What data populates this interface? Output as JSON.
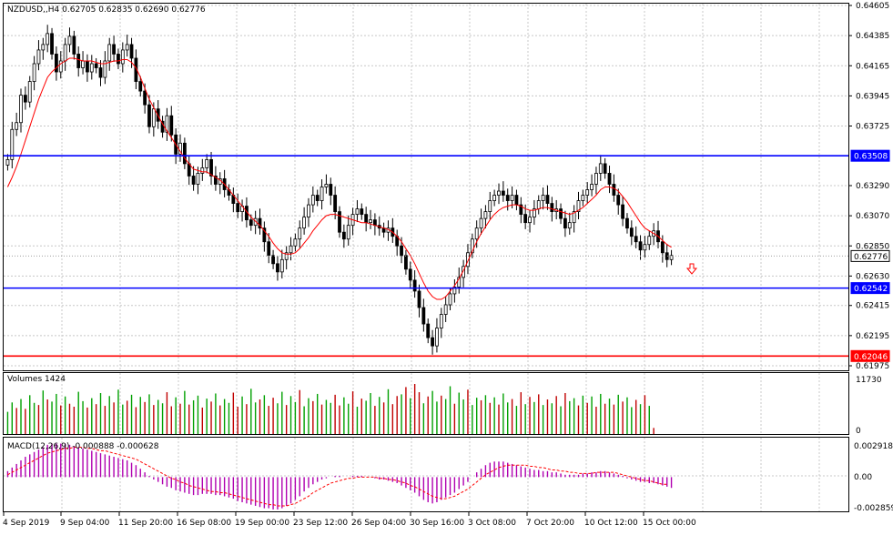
{
  "header": {
    "symbol_line": "NZDUSD,,H4  0.62705 0.62835 0.62690 0.62776"
  },
  "colors": {
    "background": "#ffffff",
    "grid": "#c8c8c8",
    "candle": "#000000",
    "ma_line": "#ff0000",
    "support_resistance": "#0000ff",
    "low_line": "#ff0000",
    "volume_up": "#00a000",
    "volume_down": "#c00000",
    "macd_hist": "#b000b0",
    "macd_signal": "#ff0000",
    "sell_arrow": "#ff0000"
  },
  "price_axis": {
    "ticks": [
      "0.64605",
      "0.64385",
      "0.64165",
      "0.63945",
      "0.63725",
      "0.63290",
      "0.63070",
      "0.62850",
      "0.62630",
      "0.62415",
      "0.62195",
      "0.61975"
    ]
  },
  "price_tags": {
    "resistance": "0.63508",
    "current": "0.62776",
    "support": "0.62542",
    "low": "0.62046"
  },
  "volume_panel": {
    "label": "Volumes 1424",
    "max_label": "11730",
    "min_label": "0"
  },
  "macd_panel": {
    "label": "MACD(12,26,9) -0.000888 -0.000628",
    "top_label": "0.002918",
    "zero_label": "0.00",
    "bottom_label": "-0.002859"
  },
  "time_axis": {
    "labels": [
      "4 Sep 2019",
      "9 Sep 04:00",
      "11 Sep 20:00",
      "16 Sep 08:00",
      "19 Sep 00:00",
      "23 Sep 12:00",
      "26 Sep 04:00",
      "30 Sep 16:00",
      "3 Oct 08:00",
      "7 Oct 20:00",
      "10 Oct 12:00",
      "15 Oct 00:00"
    ]
  },
  "chart_data": {
    "type": "candlestick",
    "symbol": "NZDUSD",
    "timeframe": "H4",
    "ylim": [
      0.61975,
      0.64605
    ],
    "horizontal_lines": [
      {
        "price": 0.63508,
        "color": "#0000ff"
      },
      {
        "price": 0.62542,
        "color": "#0000ff"
      },
      {
        "price": 0.62046,
        "color": "#ff0000"
      }
    ],
    "last_ohlc": {
      "open": 0.62705,
      "high": 0.62835,
      "low": 0.6269,
      "close": 0.62776
    },
    "close_series": [
      0.6348,
      0.637,
      0.6375,
      0.6395,
      0.639,
      0.6405,
      0.6418,
      0.6428,
      0.6432,
      0.644,
      0.6425,
      0.6412,
      0.642,
      0.6432,
      0.6438,
      0.6425,
      0.6415,
      0.642,
      0.6412,
      0.6418,
      0.6415,
      0.6408,
      0.642,
      0.6432,
      0.6425,
      0.6418,
      0.6428,
      0.6432,
      0.6422,
      0.6405,
      0.6398,
      0.6388,
      0.6372,
      0.6385,
      0.6376,
      0.6368,
      0.638,
      0.6366,
      0.6352,
      0.636,
      0.6345,
      0.6336,
      0.633,
      0.6338,
      0.6342,
      0.6348,
      0.6336,
      0.633,
      0.6334,
      0.6326,
      0.6322,
      0.6316,
      0.631,
      0.6314,
      0.6304,
      0.63,
      0.6305,
      0.6298,
      0.6288,
      0.6278,
      0.6272,
      0.6266,
      0.6275,
      0.628,
      0.6285,
      0.629,
      0.6298,
      0.6306,
      0.6315,
      0.6322,
      0.6318,
      0.6328,
      0.633,
      0.6322,
      0.631,
      0.6295,
      0.629,
      0.63,
      0.6308,
      0.6312,
      0.6308,
      0.6302,
      0.6304,
      0.63,
      0.6298,
      0.6295,
      0.6298,
      0.6292,
      0.6285,
      0.6278,
      0.6268,
      0.626,
      0.6252,
      0.624,
      0.6228,
      0.6218,
      0.6212,
      0.6225,
      0.6235,
      0.6242,
      0.625,
      0.6255,
      0.6262,
      0.627,
      0.628,
      0.629,
      0.6298,
      0.6305,
      0.631,
      0.6318,
      0.6322,
      0.6325,
      0.6322,
      0.6318,
      0.6322,
      0.6315,
      0.6308,
      0.6302,
      0.6306,
      0.6312,
      0.6318,
      0.6322,
      0.6316,
      0.631,
      0.6312,
      0.6305,
      0.6298,
      0.6302,
      0.631,
      0.6318,
      0.6322,
      0.6326,
      0.633,
      0.6338,
      0.6345,
      0.6338,
      0.633,
      0.6322,
      0.6315,
      0.6305,
      0.6298,
      0.6292,
      0.6288,
      0.6282,
      0.6286,
      0.6292,
      0.6296,
      0.6288,
      0.628,
      0.6275,
      0.6278
    ],
    "ma_series": [
      0.6328,
      0.6335,
      0.6343,
      0.6352,
      0.6362,
      0.6372,
      0.6382,
      0.6392,
      0.64,
      0.6408,
      0.6412,
      0.6415,
      0.6418,
      0.642,
      0.6422,
      0.6422,
      0.6421,
      0.642,
      0.642,
      0.642,
      0.6419,
      0.6418,
      0.6418,
      0.6419,
      0.642,
      0.642,
      0.6421,
      0.6421,
      0.6419,
      0.6415,
      0.6408,
      0.64,
      0.6392,
      0.6386,
      0.638,
      0.6374,
      0.6369,
      0.6364,
      0.6359,
      0.6354,
      0.6349,
      0.6345,
      0.6341,
      0.634,
      0.6339,
      0.6339,
      0.6337,
      0.6335,
      0.6333,
      0.633,
      0.6326,
      0.6322,
      0.6318,
      0.6314,
      0.631,
      0.6306,
      0.6303,
      0.63,
      0.6296,
      0.6292,
      0.6287,
      0.6283,
      0.628,
      0.6279,
      0.6279,
      0.628,
      0.6283,
      0.6287,
      0.6291,
      0.6296,
      0.63,
      0.6304,
      0.6307,
      0.6308,
      0.6308,
      0.6307,
      0.6306,
      0.6305,
      0.6304,
      0.6303,
      0.6302,
      0.6302,
      0.6301,
      0.63,
      0.6299,
      0.6298,
      0.6297,
      0.6295,
      0.6292,
      0.6288,
      0.6283,
      0.6278,
      0.6272,
      0.6265,
      0.6258,
      0.6252,
      0.6248,
      0.6246,
      0.6246,
      0.6248,
      0.6252,
      0.6256,
      0.6261,
      0.6267,
      0.6274,
      0.6281,
      0.6288,
      0.6294,
      0.6299,
      0.6304,
      0.6308,
      0.6311,
      0.6313,
      0.6314,
      0.6315,
      0.6315,
      0.6314,
      0.6312,
      0.6311,
      0.6311,
      0.6312,
      0.6313,
      0.6313,
      0.6312,
      0.6311,
      0.631,
      0.6309,
      0.6308,
      0.6309,
      0.6311,
      0.6313,
      0.6316,
      0.6319,
      0.6322,
      0.6326,
      0.6328,
      0.6328,
      0.6327,
      0.6325,
      0.6321,
      0.6317,
      0.6312,
      0.6307,
      0.6302,
      0.6298,
      0.6296,
      0.6294,
      0.6292,
      0.6289,
      0.6286,
      0.6284
    ],
    "volume": [
      5200,
      7400,
      6100,
      8200,
      5900,
      9100,
      7300,
      6800,
      10200,
      8100,
      7600,
      9400,
      6700,
      8800,
      7100,
      6400,
      9900,
      7700,
      6200,
      8400,
      7000,
      9600,
      6600,
      8900,
      7400,
      10400,
      6900,
      7800,
      9200,
      6300,
      8700,
      7500,
      9300,
      6800,
      8000,
      7200,
      9800,
      6500,
      8600,
      7100,
      10100,
      6900,
      7900,
      9000,
      6200,
      8300,
      7600,
      9500,
      6700,
      8200,
      7300,
      9700,
      6400,
      8800,
      7000,
      10600,
      7400,
      8100,
      9100,
      6600,
      8500,
      7200,
      9900,
      6800,
      8900,
      7500,
      10300,
      6500,
      8400,
      7700,
      9400,
      6900,
      8000,
      7300,
      9200,
      6700,
      8600,
      7100,
      10000,
      6400,
      8300,
      7800,
      9600,
      6600,
      8700,
      7400,
      10500,
      7000,
      8900,
      9300,
      11000,
      8400,
      11730,
      9800,
      7200,
      8800,
      10100,
      7600,
      9000,
      8200,
      11200,
      7100,
      9700,
      8100,
      10400,
      6800,
      8500,
      7900,
      9100,
      7300,
      8600,
      6900,
      9500,
      7400,
      8200,
      6600,
      9800,
      7000,
      8700,
      7500,
      9300,
      6800,
      8100,
      7200,
      8900,
      6500,
      9600,
      7700,
      8400,
      6700,
      9000,
      7300,
      8800,
      6400,
      9400,
      7100,
      8300,
      6900,
      9200,
      7600,
      8600,
      6300,
      8000,
      7000,
      9100,
      6600,
      1424
    ],
    "volume_up": [
      true,
      true,
      false,
      true,
      false,
      true,
      true,
      false,
      true,
      false,
      true,
      true,
      false,
      true,
      false,
      false,
      true,
      true,
      false,
      true,
      false,
      true,
      false,
      true,
      false,
      true,
      true,
      false,
      true,
      false,
      true,
      false,
      true,
      false,
      true,
      true,
      false,
      false,
      true,
      false,
      true,
      false,
      true,
      true,
      false,
      true,
      false,
      true,
      false,
      true,
      true,
      false,
      false,
      true,
      false,
      true,
      true,
      false,
      true,
      false,
      false,
      true,
      true,
      false,
      true,
      true,
      false,
      true,
      true,
      false,
      true,
      false,
      true,
      true,
      false,
      false,
      true,
      true,
      false,
      true,
      false,
      true,
      true,
      false,
      true,
      false,
      true,
      false,
      false,
      true,
      false,
      true,
      false,
      false,
      true,
      false,
      true,
      true,
      false,
      true,
      true,
      false,
      true,
      true,
      false,
      true,
      true,
      false,
      true,
      false,
      true,
      false,
      true,
      true,
      false,
      true,
      false,
      true,
      false,
      true,
      false,
      true,
      false,
      true,
      false,
      true,
      false,
      true,
      true,
      false,
      true,
      false,
      true,
      false,
      true,
      false,
      true,
      false,
      true,
      false,
      true,
      true,
      false,
      true,
      false,
      true,
      false,
      true,
      false,
      true
    ],
    "macd_hist": [
      0.0005,
      0.0008,
      0.0011,
      0.0014,
      0.0017,
      0.0019,
      0.0021,
      0.0023,
      0.0025,
      0.0027,
      0.0028,
      0.0028,
      0.0028,
      0.0028,
      0.0027,
      0.0026,
      0.0025,
      0.0024,
      0.0023,
      0.0022,
      0.0021,
      0.002,
      0.0019,
      0.0018,
      0.0017,
      0.0016,
      0.0015,
      0.0014,
      0.0012,
      0.001,
      0.0007,
      0.0004,
      0.0001,
      -0.0002,
      -0.0004,
      -0.0006,
      -0.0008,
      -0.0009,
      -0.0011,
      -0.0012,
      -0.0013,
      -0.0014,
      -0.0015,
      -0.0015,
      -0.0014,
      -0.0014,
      -0.0014,
      -0.0015,
      -0.0015,
      -0.0016,
      -0.0017,
      -0.0018,
      -0.002,
      -0.0021,
      -0.0022,
      -0.0023,
      -0.0024,
      -0.0025,
      -0.0026,
      -0.0026,
      -0.0027,
      -0.0027,
      -0.0026,
      -0.0024,
      -0.0022,
      -0.0019,
      -0.0016,
      -0.0012,
      -0.0009,
      -0.0006,
      -0.0004,
      -0.0002,
      -0.0001,
      0.0,
      0.0001,
      0.0001,
      0.0,
      0.0,
      0.0001,
      0.0001,
      0.0001,
      0.0,
      0.0,
      -0.0001,
      -0.0002,
      -0.0002,
      -0.0003,
      -0.0004,
      -0.0005,
      -0.0007,
      -0.0009,
      -0.0011,
      -0.0013,
      -0.0016,
      -0.0019,
      -0.0021,
      -0.0022,
      -0.0021,
      -0.0019,
      -0.0017,
      -0.0015,
      -0.0013,
      -0.001,
      -0.0007,
      -0.0004,
      0.0,
      0.0004,
      0.0007,
      0.001,
      0.0012,
      0.0013,
      0.0013,
      0.0013,
      0.0012,
      0.0011,
      0.001,
      0.0009,
      0.0008,
      0.0007,
      0.0006,
      0.0006,
      0.0005,
      0.0005,
      0.0004,
      0.0004,
      0.0003,
      0.0002,
      0.0002,
      0.0002,
      0.0002,
      0.0003,
      0.0003,
      0.0004,
      0.0004,
      0.0005,
      0.0005,
      0.0004,
      0.0003,
      0.0002,
      0.0001,
      -0.0001,
      -0.0002,
      -0.0003,
      -0.0004,
      -0.0004,
      -0.0005,
      -0.0005,
      -0.0006,
      -0.0007,
      -0.0008,
      -0.0009
    ],
    "macd_signal": [
      0.0002,
      0.0004,
      0.0006,
      0.0008,
      0.001,
      0.0012,
      0.0014,
      0.0016,
      0.0018,
      0.002,
      0.0021,
      0.0022,
      0.0023,
      0.0024,
      0.0024,
      0.0025,
      0.0025,
      0.0025,
      0.0024,
      0.0024,
      0.0023,
      0.0022,
      0.0022,
      0.0021,
      0.002,
      0.0019,
      0.0018,
      0.0017,
      0.0016,
      0.0015,
      0.0013,
      0.0011,
      0.0009,
      0.0007,
      0.0005,
      0.0003,
      0.0001,
      -0.0001,
      -0.0002,
      -0.0004,
      -0.0005,
      -0.0007,
      -0.0008,
      -0.0009,
      -0.001,
      -0.0011,
      -0.0012,
      -0.0012,
      -0.0013,
      -0.0013,
      -0.0014,
      -0.0015,
      -0.0016,
      -0.0017,
      -0.0018,
      -0.0019,
      -0.002,
      -0.0021,
      -0.0022,
      -0.0023,
      -0.0023,
      -0.0024,
      -0.0024,
      -0.0024,
      -0.0023,
      -0.0022,
      -0.002,
      -0.0018,
      -0.0016,
      -0.0013,
      -0.0011,
      -0.0009,
      -0.0007,
      -0.0005,
      -0.0004,
      -0.0003,
      -0.0002,
      -0.0001,
      -0.0001,
      0.0,
      0.0,
      0.0,
      0.0,
      0.0,
      -0.0001,
      -0.0001,
      -0.0002,
      -0.0002,
      -0.0003,
      -0.0004,
      -0.0005,
      -0.0007,
      -0.0008,
      -0.001,
      -0.0012,
      -0.0014,
      -0.0016,
      -0.0017,
      -0.0018,
      -0.0018,
      -0.0017,
      -0.0016,
      -0.0014,
      -0.0012,
      -0.001,
      -0.0007,
      -0.0004,
      -0.0001,
      0.0002,
      0.0004,
      0.0006,
      0.0008,
      0.0009,
      0.001,
      0.001,
      0.001,
      0.001,
      0.001,
      0.0009,
      0.0009,
      0.0008,
      0.0008,
      0.0007,
      0.0006,
      0.0006,
      0.0005,
      0.0005,
      0.0004,
      0.0004,
      0.0003,
      0.0003,
      0.0003,
      0.0003,
      0.0004,
      0.0004,
      0.0004,
      0.0004,
      0.0004,
      0.0003,
      0.0002,
      0.0001,
      0.0,
      -0.0001,
      -0.0002,
      -0.0003,
      -0.0003,
      -0.0004,
      -0.0005,
      -0.0006,
      -0.0006
    ]
  }
}
